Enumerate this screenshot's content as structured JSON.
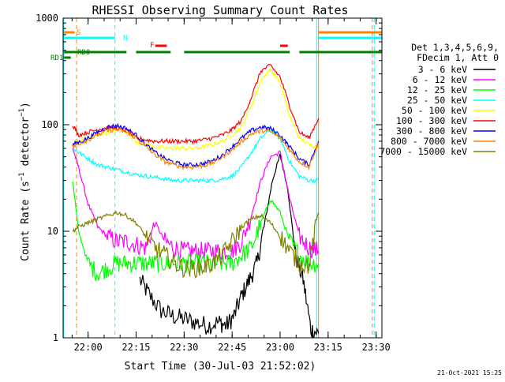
{
  "chart_data": {
    "type": "line",
    "title": "RHESSI Observing Summary Count Rates",
    "xlabel": "Start Time (30-Jul-03 21:52:02)",
    "ylabel": "Count Rate (s⁻¹ detector⁻¹)",
    "y_scale": "log",
    "ylim": [
      1,
      1000
    ],
    "xlim_minutes": [
      21.87,
      23.53
    ],
    "x_ticks": [
      "22:00",
      "22:15",
      "22:30",
      "22:45",
      "23:00",
      "23:15",
      "23:30"
    ],
    "x_tick_hours": [
      22.0,
      22.25,
      22.5,
      22.75,
      23.0,
      23.25,
      23.5
    ],
    "y_ticks": [
      "1",
      "10",
      "100",
      "1000"
    ],
    "y_tick_values": [
      1,
      10,
      100,
      1000
    ],
    "legend_header": [
      "Det 1,3,4,5,6,9,",
      "FDecim 1, Att 0"
    ],
    "legend_placement": "right",
    "grid": false,
    "series": [
      {
        "name": "3 - 6 keV",
        "color": "#000000",
        "x": [
          22.27,
          22.32,
          22.38,
          22.44,
          22.5,
          22.56,
          22.62,
          22.68,
          22.72,
          22.76,
          22.8,
          22.84,
          22.88,
          22.92,
          22.96,
          23.0,
          23.04,
          23.08,
          23.12,
          23.16,
          23.2
        ],
        "values": [
          3.5,
          2.5,
          1.8,
          1.6,
          1.5,
          1.4,
          1.3,
          1.4,
          1.3,
          1.6,
          2.5,
          3.5,
          5.0,
          12,
          30,
          52,
          25,
          6,
          3.5,
          1.2,
          1.1
        ]
      },
      {
        "name": "6 - 12 keV",
        "color": "#ff00ff",
        "x": [
          21.92,
          21.95,
          22.0,
          22.05,
          22.1,
          22.15,
          22.2,
          22.25,
          22.3,
          22.35,
          22.4,
          22.45,
          22.5,
          22.55,
          22.6,
          22.65,
          22.7,
          22.75,
          22.8,
          22.85,
          22.9,
          22.95,
          23.0,
          23.05,
          23.1,
          23.15,
          23.2
        ],
        "values": [
          60,
          40,
          18,
          11,
          9,
          8,
          8,
          7.5,
          7,
          12,
          8,
          7,
          6.5,
          6.5,
          6.5,
          6.5,
          6.5,
          6.5,
          8,
          14,
          30,
          50,
          55,
          20,
          9,
          7,
          6.5
        ]
      },
      {
        "name": "12 - 25 keV",
        "color": "#00ff00",
        "x": [
          21.92,
          21.95,
          22.0,
          22.05,
          22.1,
          22.15,
          22.2,
          22.25,
          22.3,
          22.35,
          22.4,
          22.45,
          22.5,
          22.55,
          22.6,
          22.65,
          22.7,
          22.75,
          22.8,
          22.85,
          22.9,
          22.95,
          23.0,
          23.05,
          23.1,
          23.15,
          23.2
        ],
        "values": [
          30,
          10,
          5,
          4,
          4.5,
          5,
          5,
          5,
          5,
          5,
          5,
          5,
          5,
          5,
          5,
          5,
          5,
          5,
          6,
          7,
          12,
          20,
          15,
          8,
          6,
          5,
          5
        ]
      },
      {
        "name": "25 - 50 keV",
        "color": "#00ffff",
        "x": [
          21.92,
          21.95,
          22.0,
          22.05,
          22.1,
          22.15,
          22.2,
          22.25,
          22.3,
          22.35,
          22.4,
          22.45,
          22.5,
          22.55,
          22.6,
          22.65,
          22.7,
          22.75,
          22.8,
          22.85,
          22.9,
          22.95,
          23.0,
          23.05,
          23.1,
          23.15,
          23.2
        ],
        "values": [
          60,
          55,
          48,
          42,
          40,
          38,
          36,
          34,
          33,
          32,
          31,
          30,
          30,
          30,
          30,
          30,
          31,
          33,
          40,
          55,
          75,
          90,
          75,
          45,
          33,
          30,
          30
        ]
      },
      {
        "name": "50 - 100 keV",
        "color": "#ffff00",
        "x": [
          21.92,
          21.95,
          22.0,
          22.05,
          22.1,
          22.15,
          22.2,
          22.25,
          22.3,
          22.35,
          22.4,
          22.45,
          22.5,
          22.55,
          22.6,
          22.65,
          22.7,
          22.75,
          22.8,
          22.85,
          22.9,
          22.95,
          23.0,
          23.05,
          23.1,
          23.15,
          23.2
        ],
        "values": [
          65,
          70,
          75,
          80,
          85,
          88,
          85,
          70,
          65,
          62,
          60,
          60,
          60,
          60,
          62,
          65,
          70,
          80,
          95,
          150,
          260,
          330,
          250,
          120,
          75,
          65,
          63
        ]
      },
      {
        "name": "100 - 300 keV",
        "color": "#ff0000",
        "x": [
          21.92,
          21.95,
          22.0,
          22.05,
          22.1,
          22.15,
          22.2,
          22.25,
          22.3,
          22.35,
          22.4,
          22.45,
          22.5,
          22.55,
          22.6,
          22.65,
          22.7,
          22.75,
          22.8,
          22.85,
          22.9,
          22.95,
          23.0,
          23.05,
          23.1,
          23.15,
          23.2
        ],
        "values": [
          100,
          80,
          85,
          90,
          95,
          92,
          88,
          75,
          72,
          70,
          70,
          70,
          70,
          70,
          72,
          75,
          80,
          90,
          110,
          180,
          320,
          360,
          280,
          150,
          85,
          75,
          115
        ]
      },
      {
        "name": "300 - 800 keV",
        "color": "#0000ff",
        "x": [
          21.92,
          21.95,
          22.0,
          22.05,
          22.1,
          22.15,
          22.2,
          22.25,
          22.3,
          22.35,
          22.4,
          22.45,
          22.5,
          22.55,
          22.6,
          22.65,
          22.7,
          22.75,
          22.8,
          22.85,
          22.9,
          22.95,
          23.0,
          23.05,
          23.1,
          23.15,
          23.2
        ],
        "values": [
          65,
          68,
          75,
          85,
          95,
          98,
          92,
          80,
          65,
          55,
          48,
          44,
          42,
          42,
          43,
          46,
          52,
          62,
          75,
          88,
          95,
          92,
          80,
          62,
          48,
          42,
          70
        ]
      },
      {
        "name": "800 - 7000 keV",
        "color": "#ff8000",
        "x": [
          21.92,
          21.95,
          22.0,
          22.05,
          22.1,
          22.15,
          22.2,
          22.25,
          22.3,
          22.35,
          22.4,
          22.45,
          22.5,
          22.55,
          22.6,
          22.65,
          22.7,
          22.75,
          22.8,
          22.85,
          22.9,
          22.95,
          23.0,
          23.05,
          23.1,
          23.15,
          23.2
        ],
        "values": [
          62,
          66,
          72,
          80,
          88,
          90,
          86,
          75,
          62,
          52,
          45,
          42,
          40,
          40,
          41,
          44,
          50,
          58,
          70,
          82,
          88,
          86,
          75,
          58,
          45,
          40,
          68
        ]
      },
      {
        "name": "7000 - 15000 keV",
        "color": "#808000",
        "x": [
          21.92,
          21.95,
          22.0,
          22.05,
          22.1,
          22.15,
          22.2,
          22.25,
          22.3,
          22.35,
          22.4,
          22.45,
          22.5,
          22.55,
          22.6,
          22.65,
          22.7,
          22.75,
          22.8,
          22.85,
          22.9,
          22.95,
          23.0,
          23.05,
          23.1,
          23.15,
          23.2
        ],
        "values": [
          10,
          11,
          12,
          13,
          14,
          15,
          14,
          12,
          9,
          7,
          6,
          5,
          4.5,
          4.5,
          4.6,
          5,
          6,
          8,
          11,
          13,
          14,
          12,
          9,
          6.5,
          5,
          4.8,
          15
        ]
      }
    ],
    "flag_bars": [
      {
        "label": "S",
        "color": "#ff8000",
        "segments": [
          [
            21.875,
            21.93
          ],
          [
            23.2,
            23.53
          ]
        ]
      },
      {
        "label": "N",
        "color": "#00ffff",
        "segments": [
          [
            21.875,
            22.14
          ],
          [
            23.2,
            23.53
          ]
        ]
      },
      {
        "label": "F",
        "color": "#ff0000",
        "segments": [
          [
            22.35,
            22.41
          ],
          [
            23.0,
            23.04
          ]
        ]
      },
      {
        "label": "RD0",
        "color": "#008000",
        "segments": [
          [
            21.875,
            22.2
          ],
          [
            22.25,
            22.43
          ],
          [
            22.5,
            23.05
          ],
          [
            23.1,
            23.53
          ]
        ]
      },
      {
        "label": "RD1",
        "color": "#008000",
        "segments": [
          [
            21.875,
            21.91
          ]
        ]
      }
    ],
    "vlines": [
      {
        "x": 21.874,
        "color": "#00ffff",
        "style": "solid"
      },
      {
        "x": 21.94,
        "color": "#ff8000",
        "style": "dashed"
      },
      {
        "x": 22.14,
        "color": "#00ffff",
        "style": "dashed"
      },
      {
        "x": 23.19,
        "color": "#00ffff",
        "style": "solid"
      },
      {
        "x": 23.2,
        "color": "#ff8000",
        "style": "solid"
      },
      {
        "x": 23.48,
        "color": "#ff8000",
        "style": "dashed"
      },
      {
        "x": 23.49,
        "color": "#00ffff",
        "style": "dashed"
      }
    ]
  },
  "footer": {
    "date_stamp": "21-Oct-2021 15:25"
  }
}
